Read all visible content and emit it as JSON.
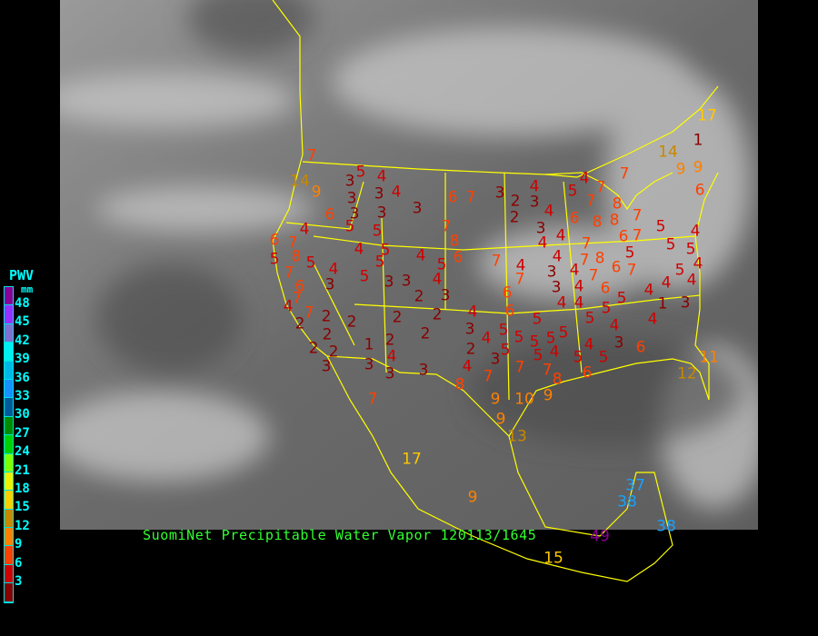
{
  "title": "SuomiNet Precipitable Water Vapor 120113/1645",
  "legend": {
    "title": "PWV",
    "unit": "mm",
    "labels": [
      "48",
      "45",
      "42",
      "39",
      "36",
      "33",
      "30",
      "27",
      "24",
      "21",
      "18",
      "15",
      "12",
      "9",
      "6",
      "3"
    ],
    "colors": [
      "#8a0096",
      "#9a30ff",
      "#8070d0",
      "#00f0f0",
      "#00b8e8",
      "#1890ff",
      "#005a9a",
      "#008a00",
      "#00d000",
      "#80ff00",
      "#f0f000",
      "#ffd000",
      "#c88800",
      "#ff8000",
      "#ff4000",
      "#d00000",
      "#8a0000"
    ]
  },
  "stations": [
    "7",
    "14",
    "9",
    "5",
    "4",
    "3",
    "3",
    "3",
    "4",
    "6",
    "3",
    "3",
    "3",
    "5",
    "5",
    "4",
    "6",
    "7",
    "4",
    "5",
    "5",
    "8",
    "7",
    "5",
    "4",
    "5",
    "5",
    "3",
    "6",
    "3",
    "4",
    "5",
    "6",
    "7",
    "8",
    "6",
    "7",
    "3",
    "2",
    "4",
    "3",
    "7",
    "7",
    "4",
    "2",
    "2",
    "2",
    "2",
    "2",
    "2",
    "2",
    "1",
    "2",
    "2",
    "2",
    "4",
    "3",
    "3",
    "3",
    "3",
    "4",
    "3",
    "4",
    "2",
    "3",
    "4",
    "7",
    "8",
    "5",
    "3",
    "2",
    "2",
    "4",
    "3",
    "4",
    "3",
    "4",
    "4",
    "5",
    "4",
    "7",
    "7",
    "7",
    "6",
    "8",
    "8",
    "8",
    "6",
    "7",
    "7",
    "5",
    "7",
    "7",
    "8",
    "7",
    "6",
    "7",
    "4",
    "3",
    "3",
    "4",
    "4",
    "4",
    "4",
    "6",
    "5",
    "5",
    "5",
    "4",
    "5",
    "5",
    "4",
    "4",
    "4",
    "4",
    "1",
    "3",
    "4",
    "5",
    "5",
    "4",
    "3",
    "6",
    "5",
    "5",
    "4",
    "5",
    "5",
    "6",
    "9",
    "9",
    "6",
    "11",
    "12",
    "7",
    "7",
    "6",
    "6",
    "4",
    "5",
    "5",
    "5",
    "5",
    "7",
    "5",
    "7",
    "4",
    "9",
    "10",
    "8",
    "9",
    "9",
    "13",
    "7",
    "17",
    "9",
    "37",
    "38",
    "38",
    "49",
    "15",
    "17",
    "14",
    "1"
  ]
}
